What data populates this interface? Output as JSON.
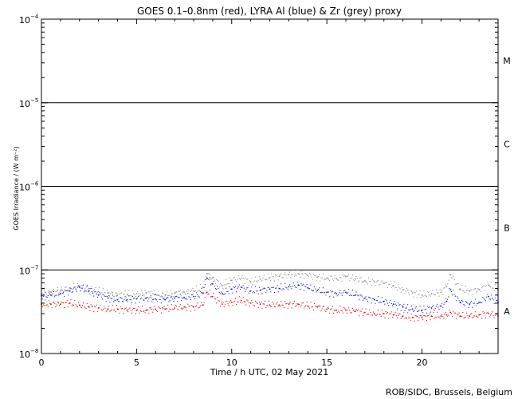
{
  "chart_data": {
    "type": "scatter",
    "title": "GOES 0.1–0.8nm (red), LYRA Al (blue) & Zr (grey) proxy",
    "xlabel": "Time / h UTC, 02 May 2021",
    "ylabel": "GOES Irradiance / (W m⁻²)",
    "xlim": [
      0,
      24
    ],
    "ylim": [
      1e-08,
      0.0001
    ],
    "yscale": "log",
    "x_ticks": [
      0,
      5,
      10,
      15,
      20
    ],
    "y_tick_labels": [
      {
        "value": 1e-08,
        "mantissa": "10",
        "exponent": "−8"
      },
      {
        "value": 1e-07,
        "mantissa": "10",
        "exponent": "−7"
      },
      {
        "value": 1e-06,
        "mantissa": "10",
        "exponent": "−6"
      },
      {
        "value": 1e-05,
        "mantissa": "10",
        "exponent": "−5"
      },
      {
        "value": 0.0001,
        "mantissa": "10",
        "exponent": "−4"
      }
    ],
    "flare_class_lines": [
      1e-07,
      1e-06,
      1e-05
    ],
    "flare_class_labels": [
      {
        "label": "A",
        "value": 3.2e-08
      },
      {
        "label": "B",
        "value": 3.2e-07
      },
      {
        "label": "C",
        "value": 3.2e-06
      },
      {
        "label": "M",
        "value": 3.2e-05
      }
    ],
    "series": [
      {
        "name": "Zr (grey)",
        "color": "#8c8c8c",
        "x": [
          0,
          0.5,
          1,
          1.5,
          2,
          2.5,
          3,
          3.5,
          4,
          4.5,
          5,
          5.5,
          6,
          6.5,
          7,
          7.5,
          8,
          8.5,
          8.7,
          9,
          9.5,
          10,
          10.5,
          11,
          11.5,
          12,
          12.5,
          13,
          13.5,
          14,
          14.5,
          15,
          15.5,
          16,
          16.5,
          17,
          17.5,
          18,
          18.5,
          19,
          19.5,
          20,
          20.5,
          21,
          21.3,
          21.5,
          22,
          22.5,
          23,
          23.5,
          24
        ],
        "y": [
          5.2e-08,
          5.4e-08,
          5.6e-08,
          6.1e-08,
          6.4e-08,
          6e-08,
          5.5e-08,
          5.3e-08,
          5e-08,
          5.1e-08,
          5.2e-08,
          5.3e-08,
          5.1e-08,
          5e-08,
          5.3e-08,
          5.4e-08,
          5.6e-08,
          6.2e-08,
          9e-08,
          8e-08,
          6.5e-08,
          7.5e-08,
          8e-08,
          7.2e-08,
          7.8e-08,
          8.1e-08,
          8.4e-08,
          8.8e-08,
          9e-08,
          8.6e-08,
          8.2e-08,
          8e-08,
          7.9e-08,
          8.3e-08,
          7.8e-08,
          7.4e-08,
          7.2e-08,
          6.9e-08,
          6.5e-08,
          5.8e-08,
          5.3e-08,
          5e-08,
          5.2e-08,
          5.4e-08,
          6.3e-08,
          8.8e-08,
          5.9e-08,
          5.6e-08,
          5.8e-08,
          6.6e-08,
          5.8e-08
        ]
      },
      {
        "name": "LYRA Al (blue)",
        "color": "#1010d0",
        "x": [
          0,
          0.5,
          1,
          1.5,
          2,
          2.5,
          3,
          3.5,
          4,
          4.5,
          5,
          5.5,
          6,
          6.5,
          7,
          7.5,
          8,
          8.5,
          8.7,
          9,
          9.5,
          10,
          10.5,
          11,
          11.5,
          12,
          12.5,
          13,
          13.5,
          14,
          14.5,
          15,
          15.5,
          16,
          16.5,
          17,
          17.5,
          18,
          18.5,
          19,
          19.5,
          20,
          20.5,
          21,
          21.3,
          21.5,
          22,
          22.5,
          23,
          23.5,
          24
        ],
        "y": [
          4.9e-08,
          5e-08,
          5.2e-08,
          5.6e-08,
          6.2e-08,
          5.6e-08,
          5e-08,
          4.6e-08,
          4.4e-08,
          4.4e-08,
          4.5e-08,
          4.6e-08,
          4.5e-08,
          4.4e-08,
          4.6e-08,
          4.7e-08,
          4.8e-08,
          5.3e-08,
          8e-08,
          6.8e-08,
          5.2e-08,
          5.9e-08,
          6.2e-08,
          5.6e-08,
          5.7e-08,
          5.9e-08,
          6e-08,
          6.3e-08,
          6.6e-08,
          6.1e-08,
          5.7e-08,
          5.4e-08,
          5.2e-08,
          5.4e-08,
          5e-08,
          4.6e-08,
          4.4e-08,
          4.2e-08,
          3.9e-08,
          3.6e-08,
          3.4e-08,
          3.3e-08,
          3.5e-08,
          3.7e-08,
          4.2e-08,
          5.8e-08,
          4.1e-08,
          3.9e-08,
          4.1e-08,
          4.8e-08,
          4.1e-08
        ]
      },
      {
        "name": "GOES 0.1–0.8nm (red)",
        "color": "#e00000",
        "x": [
          0,
          0.5,
          1,
          1.5,
          2,
          2.5,
          3,
          3.5,
          4,
          4.5,
          5,
          5.5,
          6,
          6.5,
          7,
          7.5,
          8,
          8.5,
          8.7,
          9,
          9.5,
          10,
          10.5,
          11,
          11.5,
          12,
          12.5,
          13,
          13.5,
          14,
          14.5,
          15,
          15.5,
          16,
          16.5,
          17,
          17.5,
          18,
          18.5,
          19,
          19.5,
          20,
          20.5,
          21,
          21.3,
          21.5,
          22,
          22.5,
          23,
          23.5,
          24
        ],
        "y": [
          3.9e-08,
          3.9e-08,
          3.9e-08,
          4e-08,
          3.8e-08,
          3.6e-08,
          3.5e-08,
          3.4e-08,
          3.4e-08,
          3.3e-08,
          3.3e-08,
          3.3e-08,
          3.4e-08,
          3.4e-08,
          3.5e-08,
          3.6e-08,
          3.6e-08,
          3.8e-08,
          5.4e-08,
          4.8e-08,
          3.9e-08,
          4.1e-08,
          4.3e-08,
          4e-08,
          3.9e-08,
          3.8e-08,
          3.8e-08,
          3.9e-08,
          3.9e-08,
          3.7e-08,
          3.6e-08,
          3.4e-08,
          3.3e-08,
          3.3e-08,
          3.2e-08,
          3.1e-08,
          3e-08,
          3e-08,
          2.9e-08,
          2.8e-08,
          2.7e-08,
          2.7e-08,
          2.8e-08,
          2.8e-08,
          2.9e-08,
          3.1e-08,
          2.8e-08,
          2.8e-08,
          2.9e-08,
          3e-08,
          2.8e-08
        ]
      }
    ]
  },
  "footer": {
    "credit": "ROB/SIDC, Brussels, Belgium"
  }
}
